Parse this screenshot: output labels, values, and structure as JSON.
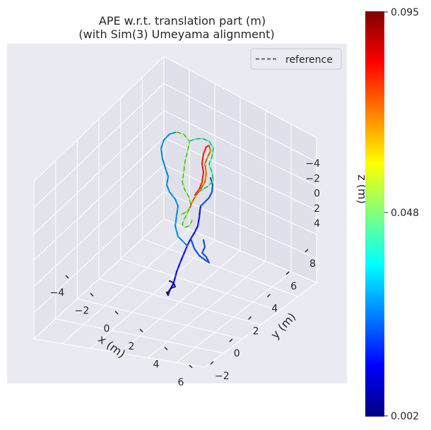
{
  "chart_data": {
    "type": "line",
    "projection": "3d",
    "title_line1": "APE w.r.t. translation part (m)",
    "title_line2": "(with Sim(3) Umeyama alignment)",
    "legend": {
      "entries": [
        "reference"
      ],
      "placement": "top-right",
      "style": "dashed gray"
    },
    "axes": {
      "x": {
        "label": "x (m)",
        "ticks": [
          -4,
          -2,
          0,
          2,
          4,
          6
        ]
      },
      "y": {
        "label": "y (m)",
        "ticks": [
          -2,
          0,
          2,
          4,
          6,
          8
        ]
      },
      "z": {
        "label": "z (m)",
        "ticks": [
          -4,
          -2,
          0,
          2,
          4
        ]
      }
    },
    "colorbar": {
      "colormap": "jet",
      "min": 0.002,
      "mid": 0.048,
      "max": 0.095,
      "tick_labels": [
        "0.095",
        "0.048",
        "0.002"
      ]
    },
    "series": [
      {
        "name": "reference",
        "style": "dashed",
        "color": "#666666"
      }
    ],
    "grid": true,
    "background": "#eaeaf2"
  }
}
